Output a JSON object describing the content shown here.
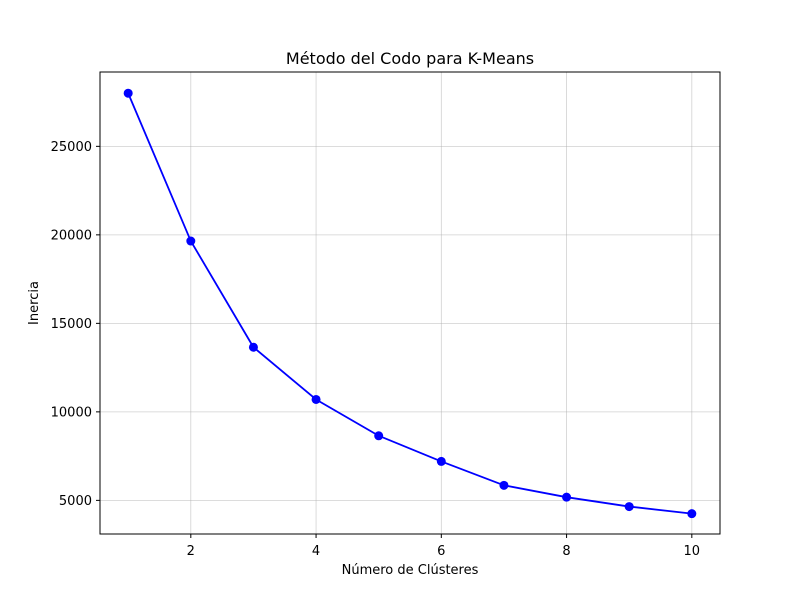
{
  "chart_data": {
    "type": "line",
    "title": "Método del Codo para K-Means",
    "xlabel": "Número de Clústeres",
    "ylabel": "Inercia",
    "x": [
      1,
      2,
      3,
      4,
      5,
      6,
      7,
      8,
      9,
      10
    ],
    "series": [
      {
        "values": [
          28000,
          19650,
          13650,
          10700,
          8650,
          7200,
          5850,
          5180,
          4650,
          4250
        ],
        "color": "#0000ff",
        "marker": "circle"
      }
    ],
    "xlim": [
      0.55,
      10.45
    ],
    "ylim": [
      3100,
      29200
    ],
    "x_ticks": [
      2,
      4,
      6,
      8,
      10
    ],
    "y_ticks": [
      5000,
      10000,
      15000,
      20000,
      25000
    ],
    "grid": true
  }
}
